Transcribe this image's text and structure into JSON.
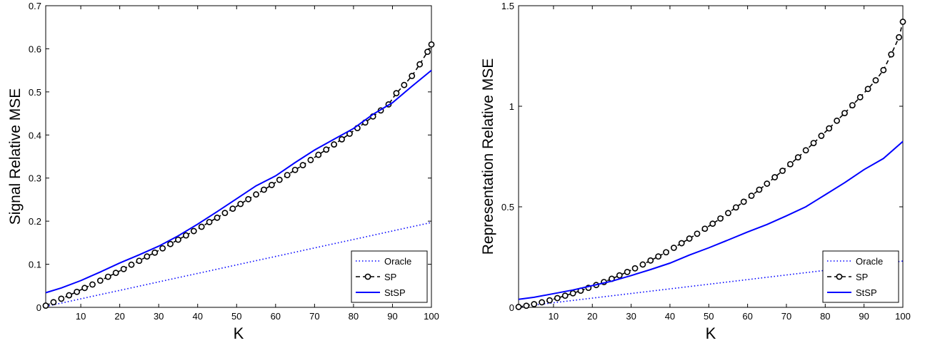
{
  "chart_data": [
    {
      "type": "line",
      "xlabel": "K",
      "ylabel": "Signal Relative MSE",
      "xlim": [
        1,
        100
      ],
      "ylim": [
        0,
        0.7
      ],
      "xticks": [
        10,
        20,
        30,
        40,
        50,
        60,
        70,
        80,
        90,
        100
      ],
      "xtick_labels": [
        "10",
        "20",
        "30",
        "40",
        "50",
        "60",
        "70",
        "80",
        "90",
        "100"
      ],
      "yticks": [
        0,
        0.1,
        0.2,
        0.3,
        0.4,
        0.5,
        0.6,
        0.7
      ],
      "ytick_labels": [
        "0",
        "0.1",
        "0.2",
        "0.3",
        "0.4",
        "0.5",
        "0.6",
        "0.7"
      ],
      "grid": false,
      "legend": {
        "position": "bottom-right",
        "entries": [
          "Oracle",
          "SP",
          "StSP"
        ]
      },
      "series": [
        {
          "name": "Oracle",
          "style": "dotted",
          "color": "#0000ff",
          "markers": false,
          "x": [
            1,
            100
          ],
          "y": [
            0.002,
            0.197
          ]
        },
        {
          "name": "SP",
          "style": "dashed",
          "color": "#000000",
          "markers": true,
          "x": [
            1,
            3,
            5,
            7,
            9,
            11,
            13,
            15,
            17,
            19,
            21,
            23,
            25,
            27,
            29,
            31,
            33,
            35,
            37,
            39,
            41,
            43,
            45,
            47,
            49,
            51,
            53,
            55,
            57,
            59,
            61,
            63,
            65,
            67,
            69,
            71,
            73,
            75,
            77,
            79,
            81,
            83,
            85,
            87,
            89,
            91,
            93,
            95,
            97,
            99,
            100
          ],
          "y": [
            0.004,
            0.012,
            0.02,
            0.028,
            0.036,
            0.045,
            0.053,
            0.062,
            0.071,
            0.08,
            0.089,
            0.099,
            0.108,
            0.118,
            0.127,
            0.137,
            0.147,
            0.157,
            0.167,
            0.177,
            0.187,
            0.198,
            0.208,
            0.219,
            0.229,
            0.24,
            0.251,
            0.262,
            0.273,
            0.284,
            0.296,
            0.307,
            0.319,
            0.33,
            0.342,
            0.354,
            0.366,
            0.378,
            0.39,
            0.403,
            0.416,
            0.429,
            0.443,
            0.457,
            0.471,
            0.497,
            0.516,
            0.537,
            0.564,
            0.593,
            0.61
          ]
        },
        {
          "name": "StSP",
          "style": "solid",
          "color": "#0000ff",
          "markers": false,
          "x": [
            1,
            5,
            10,
            15,
            20,
            25,
            30,
            35,
            40,
            45,
            50,
            55,
            60,
            65,
            70,
            75,
            80,
            85,
            90,
            95,
            100
          ],
          "y": [
            0.034,
            0.045,
            0.062,
            0.082,
            0.103,
            0.122,
            0.142,
            0.166,
            0.193,
            0.222,
            0.252,
            0.282,
            0.305,
            0.336,
            0.365,
            0.39,
            0.415,
            0.448,
            0.475,
            0.513,
            0.55
          ]
        }
      ]
    },
    {
      "type": "line",
      "xlabel": "K",
      "ylabel": "Representation Relative MSE",
      "xlim": [
        1,
        100
      ],
      "ylim": [
        0,
        1.5
      ],
      "xticks": [
        10,
        20,
        30,
        40,
        50,
        60,
        70,
        80,
        90,
        100
      ],
      "xtick_labels": [
        "10",
        "20",
        "30",
        "40",
        "50",
        "60",
        "70",
        "80",
        "90",
        "100"
      ],
      "yticks": [
        0,
        0.5,
        1,
        1.5
      ],
      "ytick_labels": [
        "0",
        "0.5",
        "1",
        "1.5"
      ],
      "grid": false,
      "legend": {
        "position": "bottom-right",
        "entries": [
          "Oracle",
          "SP",
          "StSP"
        ]
      },
      "series": [
        {
          "name": "Oracle",
          "style": "dotted",
          "color": "#0000ff",
          "markers": false,
          "x": [
            1,
            100
          ],
          "y": [
            0.002,
            0.23
          ]
        },
        {
          "name": "SP",
          "style": "dashed",
          "color": "#000000",
          "markers": true,
          "x": [
            1,
            3,
            5,
            7,
            9,
            11,
            13,
            15,
            17,
            19,
            21,
            23,
            25,
            27,
            29,
            31,
            33,
            35,
            37,
            39,
            41,
            43,
            45,
            47,
            49,
            51,
            53,
            55,
            57,
            59,
            61,
            63,
            65,
            67,
            69,
            71,
            73,
            75,
            77,
            79,
            81,
            83,
            85,
            87,
            89,
            91,
            93,
            95,
            97,
            99,
            100
          ],
          "y": [
            0.002,
            0.008,
            0.016,
            0.025,
            0.035,
            0.046,
            0.058,
            0.07,
            0.083,
            0.097,
            0.111,
            0.126,
            0.142,
            0.159,
            0.176,
            0.194,
            0.213,
            0.233,
            0.253,
            0.274,
            0.296,
            0.319,
            0.342,
            0.366,
            0.391,
            0.416,
            0.442,
            0.469,
            0.497,
            0.525,
            0.555,
            0.585,
            0.615,
            0.647,
            0.679,
            0.712,
            0.746,
            0.781,
            0.817,
            0.853,
            0.89,
            0.928,
            0.966,
            1.005,
            1.045,
            1.086,
            1.129,
            1.18,
            1.258,
            1.343,
            1.42
          ]
        },
        {
          "name": "StSP",
          "style": "solid",
          "color": "#0000ff",
          "markers": false,
          "x": [
            1,
            5,
            10,
            15,
            20,
            25,
            30,
            35,
            40,
            45,
            50,
            55,
            60,
            65,
            70,
            75,
            80,
            85,
            90,
            95,
            100
          ],
          "y": [
            0.04,
            0.05,
            0.068,
            0.086,
            0.108,
            0.13,
            0.158,
            0.188,
            0.22,
            0.26,
            0.296,
            0.335,
            0.375,
            0.412,
            0.455,
            0.5,
            0.56,
            0.62,
            0.685,
            0.74,
            0.825
          ]
        }
      ]
    }
  ]
}
